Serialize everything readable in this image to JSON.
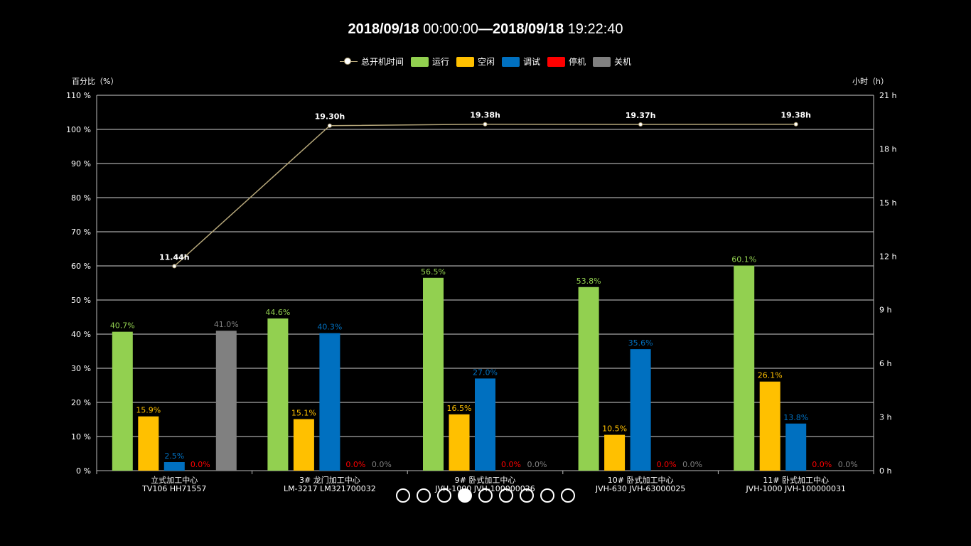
{
  "header": {
    "start_date": "2018/09/18",
    "start_time": " 00:00:00",
    "separator": "—",
    "end_date": "2018/09/18",
    "end_time": " 19:22:40"
  },
  "legend": {
    "items": [
      {
        "label": "总开机时间",
        "kind": "line",
        "color": "#b6a77a"
      },
      {
        "label": "运行",
        "kind": "bar",
        "color": "#92d050"
      },
      {
        "label": "空闲",
        "kind": "bar",
        "color": "#ffc000"
      },
      {
        "label": "调试",
        "kind": "bar",
        "color": "#0070c0"
      },
      {
        "label": "停机",
        "kind": "bar",
        "color": "#ff0000"
      },
      {
        "label": "关机",
        "kind": "bar",
        "color": "#808080"
      }
    ]
  },
  "pager": {
    "count": 9,
    "active_index": 3
  },
  "chart_data": {
    "type": "bar",
    "left_axis": {
      "name": "百分比（%）",
      "min": 0,
      "max": 110,
      "interval": 10,
      "unit": " %"
    },
    "right_axis": {
      "name": "小时（h）",
      "min": 0,
      "max": 21,
      "interval": 3,
      "unit": " h"
    },
    "categories": [
      [
        "立式加工中心",
        "TV106 HH71557"
      ],
      [
        "3# 龙门加工中心",
        "LM-3217 LM321700032"
      ],
      [
        "9# 卧式加工中心",
        "JVH-1000 JVH-100000026"
      ],
      [
        "10# 卧式加工中心",
        "JVH-630 JVH-63000025"
      ],
      [
        "11# 卧式加工中心",
        "JVH-1000 JVH-100000031"
      ]
    ],
    "series": [
      {
        "name": "运行",
        "color": "#92d050",
        "values": [
          40.7,
          44.6,
          56.5,
          53.8,
          60.1
        ]
      },
      {
        "name": "空闲",
        "color": "#ffc000",
        "values": [
          15.9,
          15.1,
          16.5,
          10.5,
          26.1
        ]
      },
      {
        "name": "调试",
        "color": "#0070c0",
        "values": [
          2.5,
          40.3,
          27.0,
          35.6,
          13.8
        ]
      },
      {
        "name": "停机",
        "color": "#ff0000",
        "values": [
          0.0,
          0.0,
          0.0,
          0.0,
          0.0
        ]
      },
      {
        "name": "关机",
        "color": "#808080",
        "values": [
          41.0,
          0.0,
          0.0,
          0.0,
          0.0
        ]
      }
    ],
    "line": {
      "name": "总开机时间",
      "color": "#b6a77a",
      "values": [
        11.44,
        19.3,
        19.38,
        19.37,
        19.38
      ],
      "labels": [
        "11.44h",
        "19.30h",
        "19.38h",
        "19.37h",
        "19.38h"
      ]
    },
    "grid": true
  }
}
